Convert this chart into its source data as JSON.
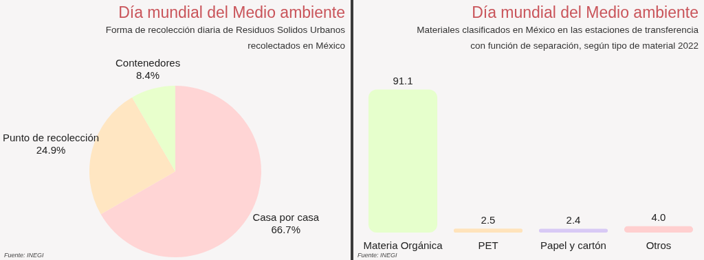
{
  "chart_data": [
    {
      "type": "pie",
      "title": "Día mundial del Medio ambiente",
      "subtitle": "Forma de recolección diaria de Residuos Solidos Urbanos recolectados en México",
      "categories": [
        "Casa por casa",
        "Punto de recolección",
        "Contenedores"
      ],
      "values": [
        66.7,
        24.9,
        8.4
      ],
      "colors": [
        "#ffd5d5",
        "#ffe6c2",
        "#e8ffcc"
      ],
      "value_labels": [
        "66.7%",
        "24.9%",
        "8.4%"
      ],
      "legend": false,
      "annotations": [
        "Fuente: INEGI"
      ]
    },
    {
      "type": "bar",
      "title": "Día mundial del Medio ambiente",
      "subtitle": "Materiales clasificados en México en las estaciones de transferencia con función de separación, según tipo de material 2022",
      "categories": [
        "Materia Orgánica",
        "PET",
        "Papel y cartón",
        "Otros"
      ],
      "values": [
        91.1,
        2.5,
        2.4,
        4.0
      ],
      "colors": [
        "#e6ffcc",
        "#ffe3bb",
        "#d8c9f5",
        "#ffcfcf"
      ],
      "value_labels": [
        "91.1",
        "2.5",
        "2.4",
        "4.0"
      ],
      "legend": false,
      "grid": false,
      "annotations": [
        "Fuente: INEGI"
      ]
    }
  ]
}
